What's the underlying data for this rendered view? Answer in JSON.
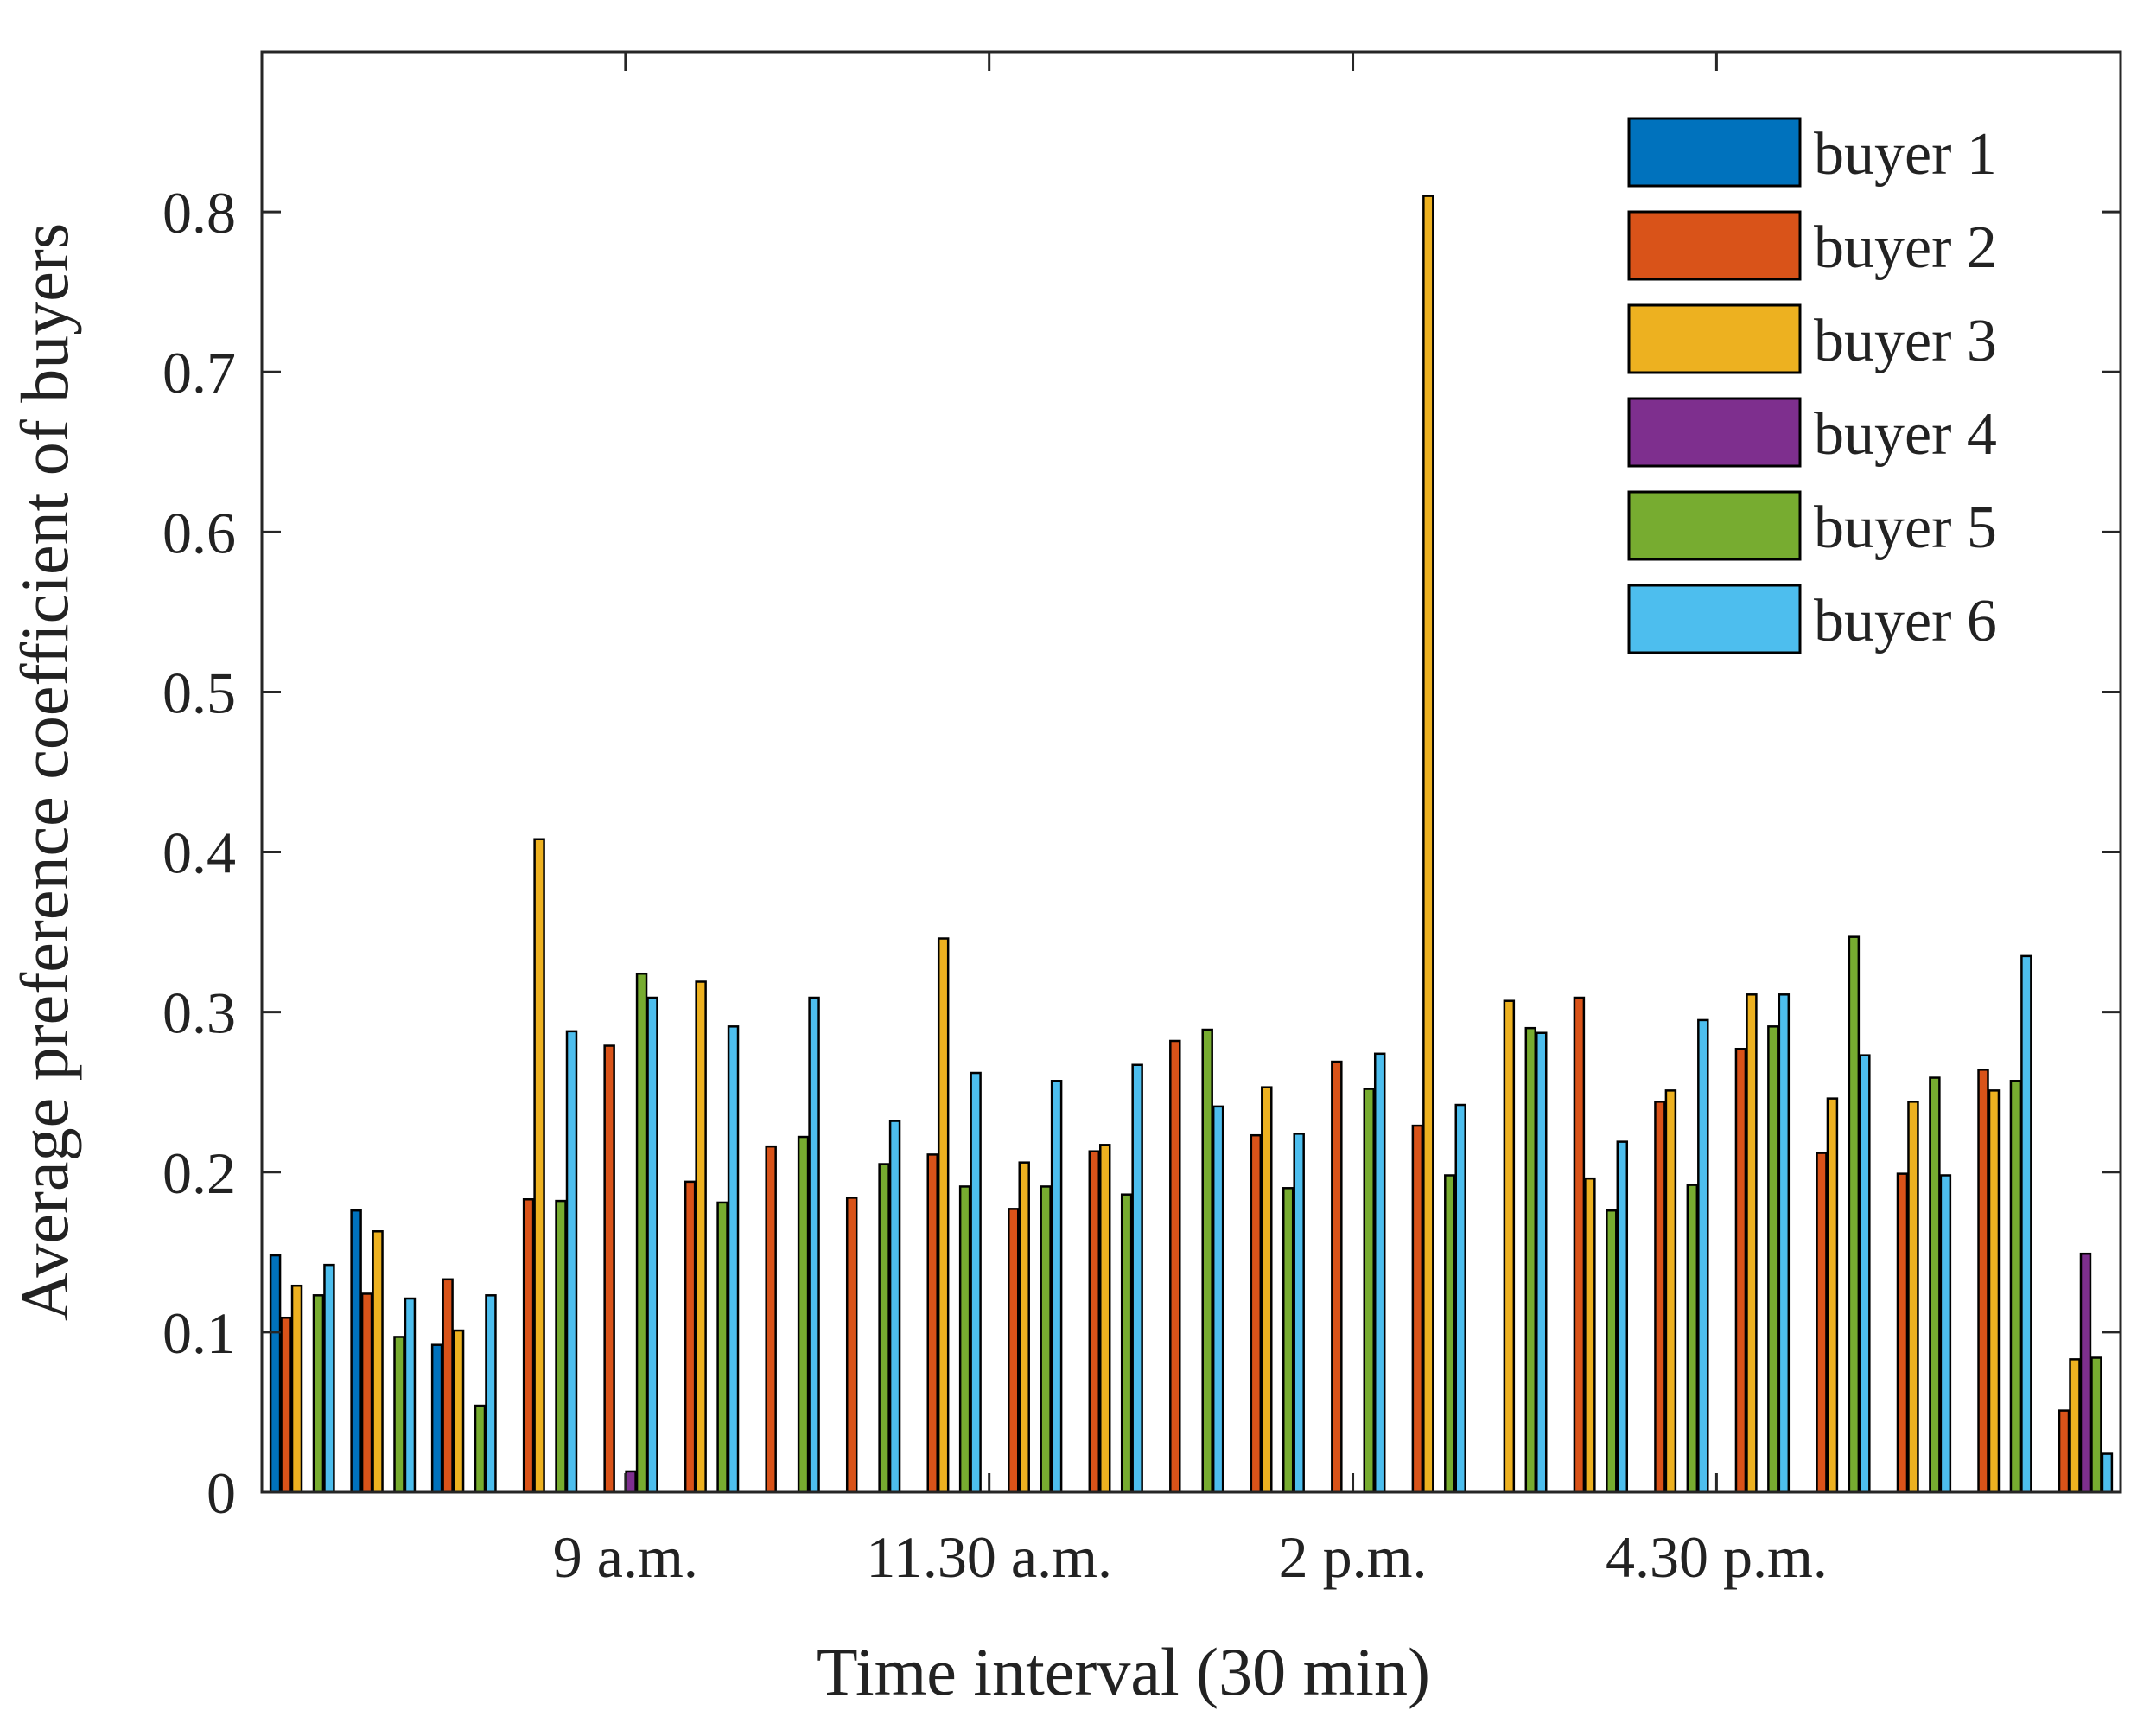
{
  "chart_data": {
    "type": "bar",
    "title": "",
    "xlabel": "Time interval (30 min)",
    "ylabel": "Average preference coefficient of buyers",
    "ylim": [
      0,
      0.9
    ],
    "xlim": [
      0.5,
      23.5
    ],
    "yticks": [
      0,
      0.1,
      0.2,
      0.3,
      0.4,
      0.5,
      0.6,
      0.7,
      0.8
    ],
    "ytick_labels": [
      "0",
      "0.1",
      "0.2",
      "0.3",
      "0.4",
      "0.5",
      "0.6",
      "0.7",
      "0.8"
    ],
    "xticks": [
      5,
      9.5,
      14,
      18.5
    ],
    "xtick_labels": [
      "9 a.m.",
      "11.30 a.m.",
      "2 p.m.",
      "4.30 p.m."
    ],
    "legend_position": "top-right",
    "categories": [
      "1",
      "2",
      "3",
      "4",
      "5",
      "6",
      "7",
      "8",
      "9",
      "10",
      "11",
      "12",
      "13",
      "14",
      "15",
      "16",
      "17",
      "18",
      "19",
      "20",
      "21",
      "22",
      "23"
    ],
    "series": [
      {
        "name": "buyer 1",
        "color": "#0072BD",
        "values": [
          0.148,
          0.176,
          0.092,
          0,
          0,
          0,
          0,
          0,
          0,
          0,
          0,
          0,
          0,
          0,
          0,
          0,
          0,
          0,
          0,
          0,
          0,
          0,
          0
        ]
      },
      {
        "name": "buyer 2",
        "color": "#D95319",
        "values": [
          0.109,
          0.124,
          0.133,
          0.183,
          0.279,
          0.194,
          0.216,
          0.184,
          0.211,
          0.177,
          0.213,
          0.282,
          0.223,
          0.269,
          0.229,
          0,
          0.309,
          0.244,
          0.277,
          0.212,
          0.199,
          0.264,
          0.051
        ]
      },
      {
        "name": "buyer 3",
        "color": "#EDB120",
        "values": [
          0.129,
          0.163,
          0.101,
          0.408,
          0,
          0.319,
          0,
          0,
          0.346,
          0.206,
          0.217,
          0,
          0.253,
          0,
          0.81,
          0.307,
          0.196,
          0.251,
          0.311,
          0.246,
          0.244,
          0.251,
          0.083
        ]
      },
      {
        "name": "buyer 4",
        "color": "#7E2F8E",
        "values": [
          0,
          0,
          0,
          0,
          0.013,
          0,
          0,
          0,
          0,
          0,
          0,
          0,
          0,
          0,
          0,
          0,
          0,
          0,
          0,
          0,
          0,
          0,
          0.149
        ]
      },
      {
        "name": "buyer 5",
        "color": "#77AC30",
        "values": [
          0.123,
          0.097,
          0.054,
          0.182,
          0.324,
          0.181,
          0.222,
          0.205,
          0.191,
          0.191,
          0.186,
          0.289,
          0.19,
          0.252,
          0.198,
          0.29,
          0.176,
          0.192,
          0.291,
          0.347,
          0.259,
          0.257,
          0.084
        ]
      },
      {
        "name": "buyer 6",
        "color": "#4DBEEE",
        "values": [
          0.142,
          0.121,
          0.123,
          0.288,
          0.309,
          0.291,
          0.309,
          0.232,
          0.262,
          0.257,
          0.267,
          0.241,
          0.224,
          0.274,
          0.242,
          0.287,
          0.219,
          0.295,
          0.311,
          0.273,
          0.198,
          0.335,
          0.024
        ]
      }
    ]
  }
}
